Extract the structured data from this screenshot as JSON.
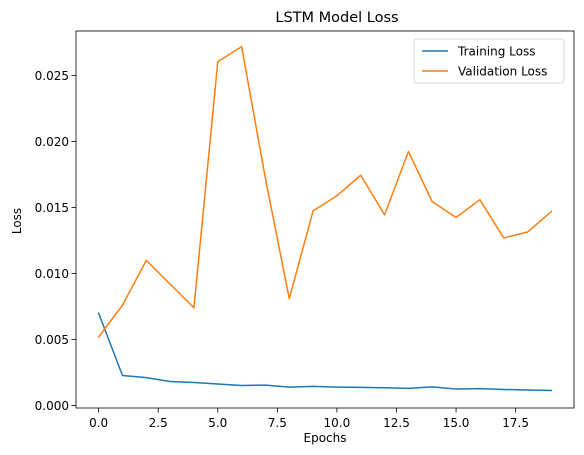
{
  "chart_data": {
    "type": "line",
    "title": "LSTM Model Loss",
    "xlabel": "Epochs",
    "ylabel": "Loss",
    "xlim": [
      -0.95,
      19.95
    ],
    "ylim": [
      -0.000185,
      0.02838
    ],
    "xticks": [
      0.0,
      2.5,
      5.0,
      7.5,
      10.0,
      12.5,
      15.0,
      17.5
    ],
    "xtick_labels": [
      "0.0",
      "2.5",
      "5.0",
      "7.5",
      "10.0",
      "12.5",
      "15.0",
      "17.5"
    ],
    "yticks": [
      0.0,
      0.005,
      0.01,
      0.015,
      0.02,
      0.025
    ],
    "ytick_labels": [
      "0.000",
      "0.005",
      "0.010",
      "0.015",
      "0.020",
      "0.025"
    ],
    "grid": false,
    "legend_position": "top-right",
    "series": [
      {
        "name": "Training Loss",
        "color": "#1f77b4",
        "x": [
          0,
          1,
          2,
          3,
          4,
          5,
          6,
          7,
          8,
          9,
          10,
          11,
          12,
          13,
          14,
          15,
          16,
          17,
          18,
          19
        ],
        "values": [
          0.007,
          0.00228,
          0.00212,
          0.00182,
          0.00175,
          0.00163,
          0.00152,
          0.00155,
          0.0014,
          0.00145,
          0.0014,
          0.00138,
          0.00135,
          0.0013,
          0.00142,
          0.00125,
          0.00128,
          0.00122,
          0.00118,
          0.00114
        ]
      },
      {
        "name": "Validation Loss",
        "color": "#ff7f0e",
        "x": [
          0,
          1,
          2,
          3,
          4,
          5,
          6,
          7,
          8,
          9,
          10,
          11,
          12,
          13,
          14,
          15,
          16,
          17,
          18,
          19
        ],
        "values": [
          0.0052,
          0.0076,
          0.011,
          0.0092,
          0.0074,
          0.02605,
          0.0272,
          0.0172,
          0.0081,
          0.01475,
          0.0159,
          0.01745,
          0.01445,
          0.01925,
          0.01545,
          0.01425,
          0.0156,
          0.0127,
          0.01315,
          0.0147
        ]
      }
    ]
  }
}
